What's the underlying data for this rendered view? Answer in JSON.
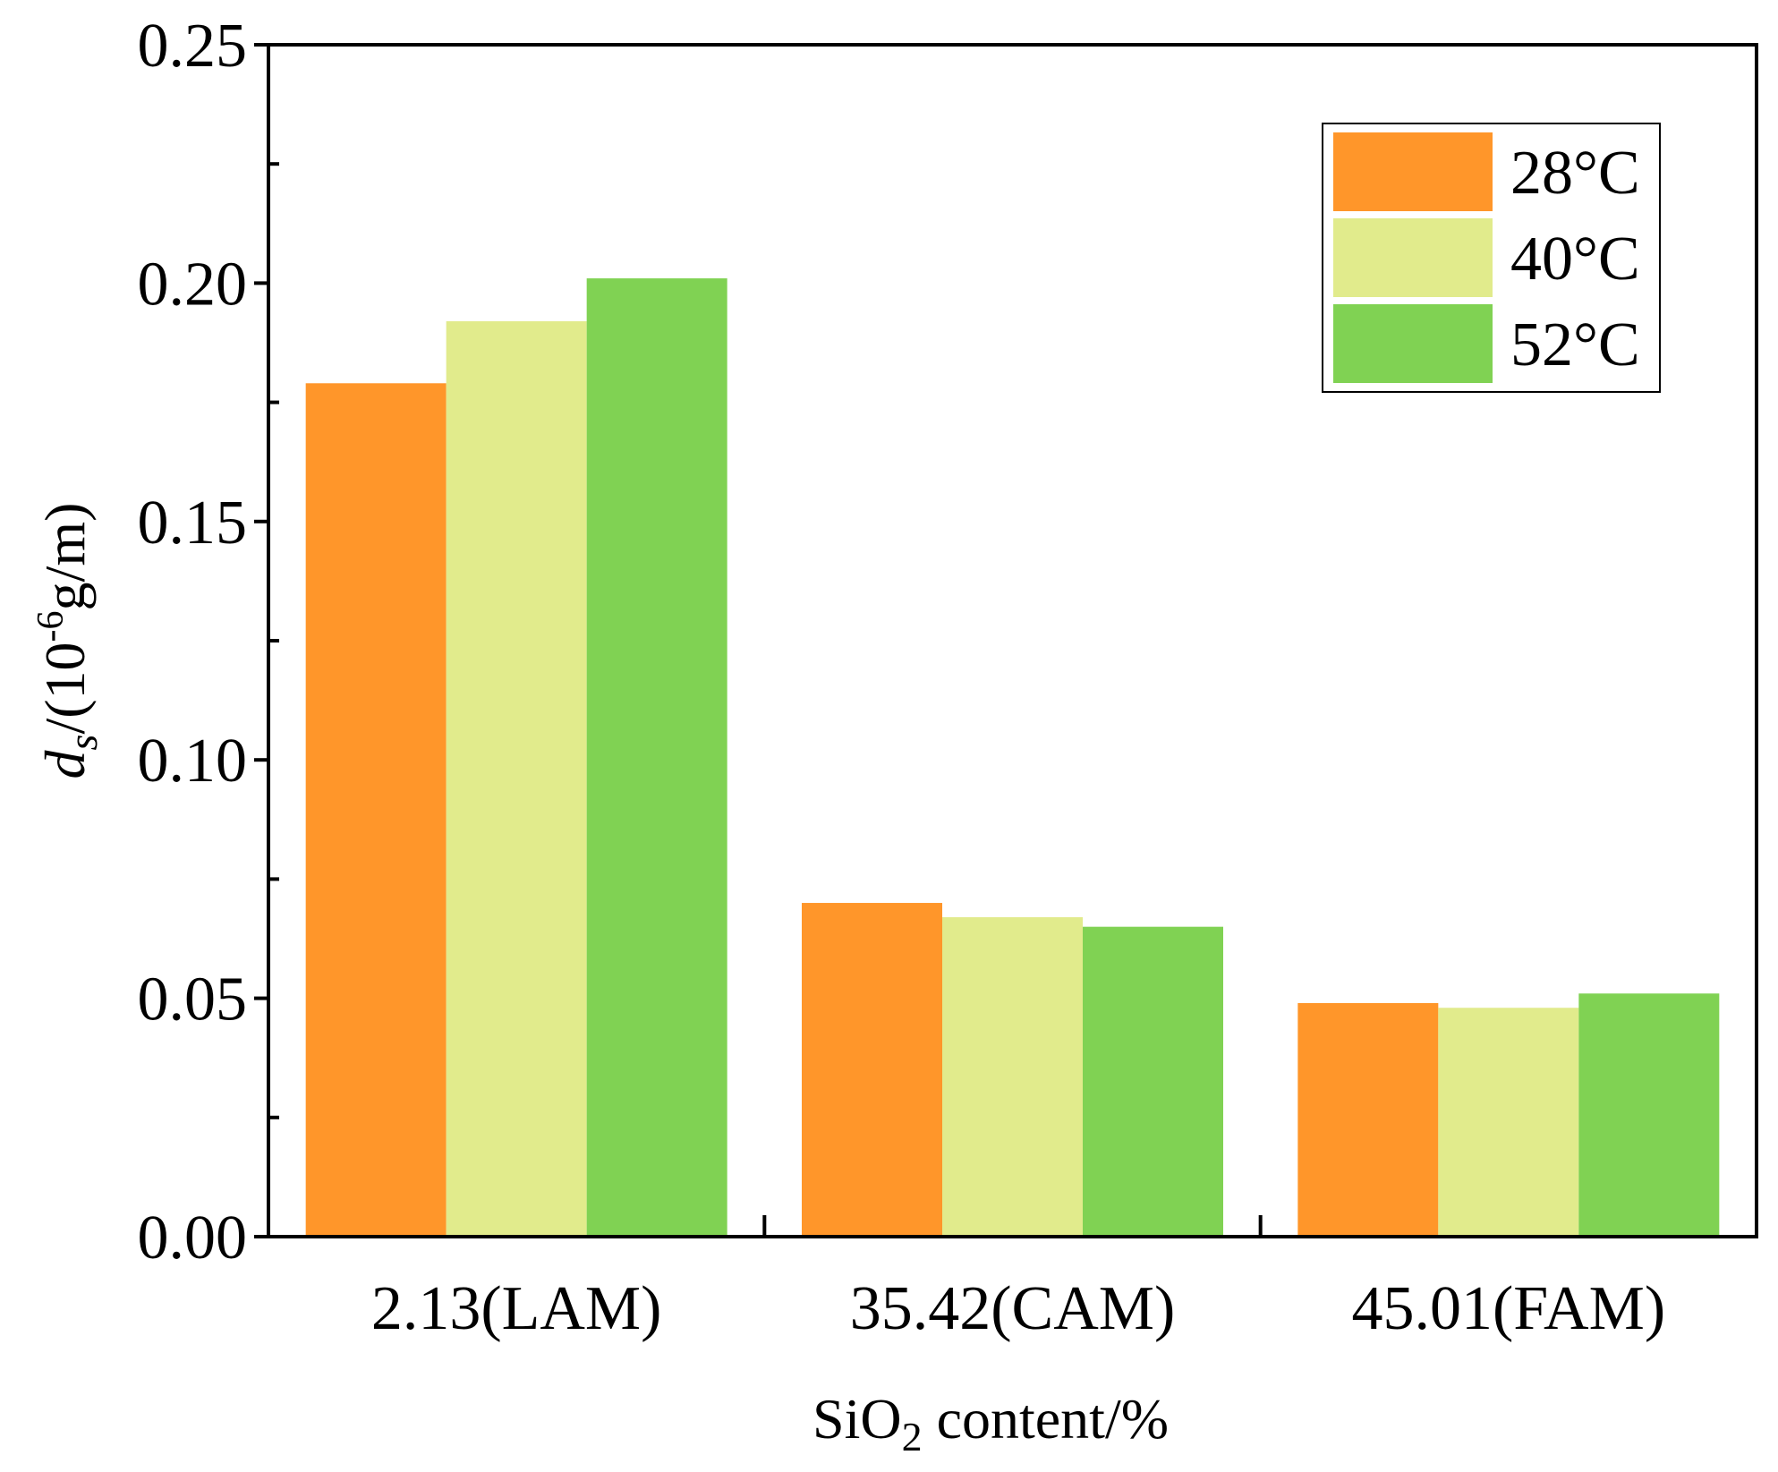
{
  "chart_data": {
    "type": "bar",
    "title": "",
    "categories": [
      "2.13(LAM)",
      "35.42(CAM)",
      "45.01(FAM)"
    ],
    "series": [
      {
        "name": "28°C",
        "color": "#FF962A",
        "values": [
          0.179,
          0.07,
          0.049
        ]
      },
      {
        "name": "40°C",
        "color": "#E1EB8C",
        "values": [
          0.192,
          0.067,
          0.048
        ]
      },
      {
        "name": "52°C",
        "color": "#80D253",
        "values": [
          0.201,
          0.065,
          0.051
        ]
      }
    ],
    "xlabel": {
      "main": "SiO",
      "sub": "2",
      "rest": " content/%"
    },
    "ylabel": {
      "var": "d",
      "var_sub": "s",
      "unit_pre": "/(10",
      "unit_sup": "-6",
      "unit_post": "g/m)"
    },
    "ylim": [
      0,
      0.25
    ],
    "yticks": [
      0.0,
      0.05,
      0.1,
      0.15,
      0.2,
      0.25
    ],
    "ytick_labels": [
      "0.00",
      "0.05",
      "0.10",
      "0.15",
      "0.20",
      "0.25"
    ],
    "legend_position": "top-right",
    "grid": false
  }
}
